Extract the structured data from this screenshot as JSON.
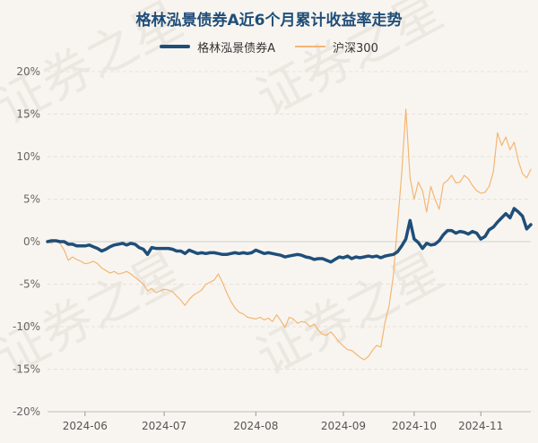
{
  "title": "格林泓景债券A近6个月累计收益率走势",
  "legend": {
    "series1": "格林泓景债券A",
    "series2": "沪深300"
  },
  "watermark": "证券之星",
  "chart_data": {
    "type": "line",
    "title": "格林泓景债券A近6个月累计收益率走势",
    "ylim": [
      -20,
      20
    ],
    "yticks": [
      -20,
      -15,
      -10,
      -5,
      0,
      5,
      10,
      15,
      20
    ],
    "ytick_labels": [
      "-20%",
      "-15%",
      "-10%",
      "-5%",
      "0%",
      "5%",
      "10%",
      "15%",
      "20%"
    ],
    "xticks": [
      {
        "label": "2024-06",
        "index": 9
      },
      {
        "label": "2024-07",
        "index": 28
      },
      {
        "label": "2024-08",
        "index": 50
      },
      {
        "label": "2024-09",
        "index": 71
      },
      {
        "label": "2024-10",
        "index": 88
      },
      {
        "label": "2024-11",
        "index": 104
      }
    ],
    "grid": true,
    "legend_position": "top-center",
    "colors": {
      "series1": "#1f4e79",
      "series2": "#f4b674"
    },
    "series": [
      {
        "name": "格林泓景债券A",
        "values": [
          0,
          0.1,
          0.1,
          0,
          0,
          -0.3,
          -0.3,
          -0.5,
          -0.5,
          -0.5,
          -0.4,
          -0.6,
          -0.8,
          -1.1,
          -0.9,
          -0.6,
          -0.4,
          -0.3,
          -0.2,
          -0.4,
          -0.2,
          -0.3,
          -0.7,
          -0.9,
          -1.5,
          -0.7,
          -0.8,
          -0.8,
          -0.8,
          -0.8,
          -0.9,
          -1.1,
          -1.1,
          -1.4,
          -1.0,
          -1.2,
          -1.4,
          -1.3,
          -1.4,
          -1.3,
          -1.3,
          -1.4,
          -1.5,
          -1.5,
          -1.4,
          -1.3,
          -1.4,
          -1.3,
          -1.4,
          -1.3,
          -1.0,
          -1.2,
          -1.4,
          -1.3,
          -1.4,
          -1.5,
          -1.6,
          -1.8,
          -1.7,
          -1.6,
          -1.5,
          -1.6,
          -1.8,
          -1.9,
          -2.1,
          -2.0,
          -2.0,
          -2.2,
          -2.4,
          -2.1,
          -1.8,
          -1.9,
          -1.7,
          -2.0,
          -1.8,
          -1.9,
          -1.8,
          -1.7,
          -1.8,
          -1.7,
          -1.9,
          -1.7,
          -1.6,
          -1.5,
          -1.2,
          -0.5,
          0.3,
          2.5,
          0.3,
          -0.1,
          -0.8,
          -0.2,
          -0.4,
          -0.3,
          0.1,
          0.8,
          1.3,
          1.3,
          1.0,
          1.2,
          1.1,
          0.9,
          1.2,
          1.0,
          0.3,
          0.6,
          1.4,
          1.7,
          2.3,
          2.8,
          3.3,
          2.8,
          3.9,
          3.5,
          3.0,
          1.5,
          2.0
        ]
      },
      {
        "name": "沪深300",
        "values": [
          0,
          -0.2,
          0.1,
          -0.2,
          -1.0,
          -2.2,
          -1.8,
          -2.1,
          -2.3,
          -2.6,
          -2.5,
          -2.3,
          -2.6,
          -3.1,
          -3.4,
          -3.7,
          -3.5,
          -3.8,
          -3.7,
          -3.5,
          -3.8,
          -4.2,
          -4.6,
          -5.0,
          -5.8,
          -5.5,
          -6.0,
          -5.8,
          -5.6,
          -5.7,
          -5.9,
          -6.4,
          -6.9,
          -7.5,
          -6.8,
          -6.3,
          -6.0,
          -5.7,
          -5.0,
          -4.8,
          -4.5,
          -3.8,
          -4.8,
          -6.0,
          -7.0,
          -7.8,
          -8.3,
          -8.5,
          -8.9,
          -9.0,
          -9.1,
          -8.9,
          -9.2,
          -9.0,
          -9.4,
          -8.6,
          -9.3,
          -10.1,
          -8.9,
          -9.1,
          -9.6,
          -9.4,
          -9.5,
          -10.0,
          -9.7,
          -10.4,
          -10.9,
          -11.0,
          -10.6,
          -11.2,
          -11.8,
          -12.3,
          -12.7,
          -12.8,
          -13.2,
          -13.6,
          -13.9,
          -13.5,
          -12.8,
          -12.2,
          -12.4,
          -9.5,
          -7.5,
          -4.0,
          2.0,
          8.0,
          15.6,
          7.5,
          5.0,
          7.0,
          6.0,
          3.5,
          6.5,
          5.0,
          3.8,
          6.8,
          7.2,
          7.8,
          6.9,
          7.0,
          7.8,
          7.4,
          6.6,
          6.0,
          5.7,
          5.8,
          6.5,
          8.2,
          12.8,
          11.3,
          12.3,
          10.8,
          11.7,
          9.5,
          8.0,
          7.5,
          8.5
        ]
      }
    ]
  }
}
